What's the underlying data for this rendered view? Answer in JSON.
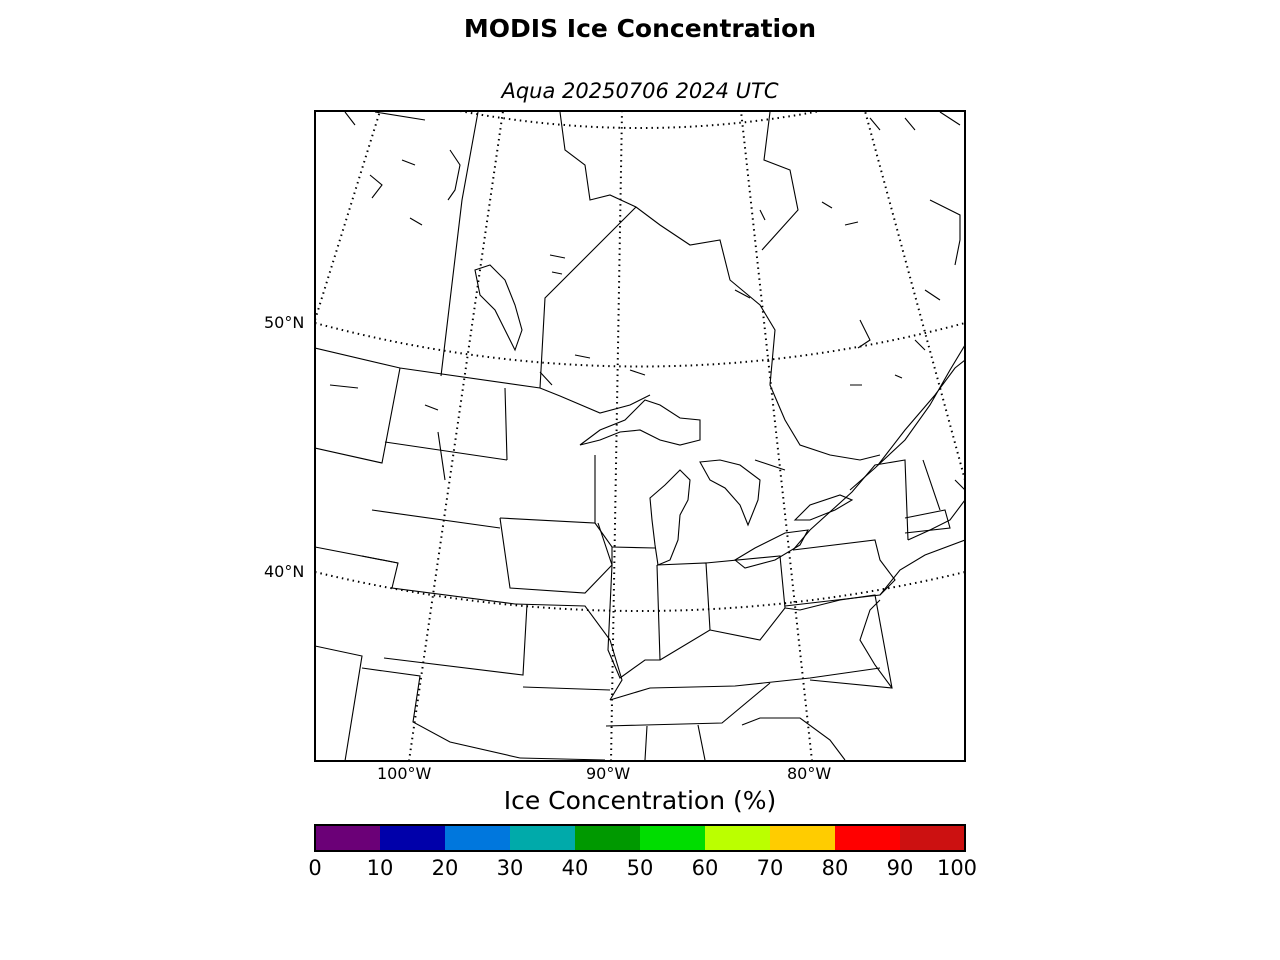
{
  "title": "MODIS Ice Concentration",
  "subtitle": "Aqua 20250706 2024 UTC",
  "map": {
    "lat_labels": [
      "50°N",
      "40°N"
    ],
    "lon_labels": [
      "100°W",
      "90°W",
      "80°W"
    ],
    "graticule_style": "dotted",
    "coastline_color": "#000000"
  },
  "colorbar": {
    "label": "Ice Concentration (%)",
    "ticks": [
      "0",
      "10",
      "20",
      "30",
      "40",
      "50",
      "60",
      "70",
      "80",
      "90",
      "100"
    ],
    "colors": [
      "#6b0077",
      "#0000aa",
      "#0077dd",
      "#00aaaa",
      "#009900",
      "#00dd00",
      "#bbff00",
      "#ffcc00",
      "#ff0000",
      "#cc1111"
    ]
  }
}
